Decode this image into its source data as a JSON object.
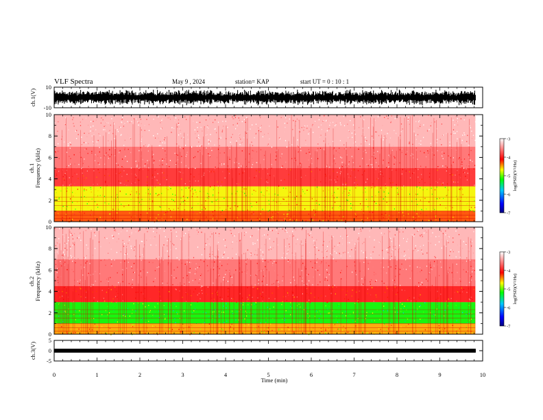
{
  "header": {
    "title": "VLF Spectra",
    "date": "May 9 , 2024",
    "station": "station= KAP",
    "start": "start UT = 0 : 10 : 1"
  },
  "chart_data": [
    {
      "type": "line",
      "panel": "ch1-waveform",
      "ylabel": "ch.1(V)",
      "ylim": [
        -10,
        10
      ],
      "yticks": [
        "10",
        "-10"
      ],
      "x_extent_min": [
        0,
        9.83
      ],
      "signal": "dense waveform oscillating near full scale (about -8 to +8 V)"
    },
    {
      "type": "heatmap",
      "panel": "ch1-spectrogram",
      "ylabel": "ch.1\nFrequency (kHz)",
      "ylim": [
        0,
        10
      ],
      "yticks": [
        "0",
        "2",
        "4",
        "6",
        "8",
        "10"
      ],
      "x_extent_min": [
        0,
        9.83
      ],
      "colorbar": {
        "label": "log(PSD)(V²/Hz)",
        "range": [
          -7,
          -3
        ],
        "ticks": [
          "-3",
          "-4",
          "-5",
          "-6",
          "-7"
        ]
      },
      "bands": [
        {
          "freq_khz": [
            0,
            1
          ],
          "level": -4.3
        },
        {
          "freq_khz": [
            1,
            3.3
          ],
          "level": -4.7
        },
        {
          "freq_khz": [
            3.3,
            5
          ],
          "level": -3.9
        },
        {
          "freq_khz": [
            5,
            7
          ],
          "level": -3.6
        },
        {
          "freq_khz": [
            7,
            10
          ],
          "level": -3.3
        }
      ]
    },
    {
      "type": "heatmap",
      "panel": "ch2-spectrogram",
      "ylabel": "ch.2\nFrequency (kHz)",
      "ylim": [
        0,
        10
      ],
      "yticks": [
        "0",
        "2",
        "4",
        "6",
        "8",
        "10"
      ],
      "x_extent_min": [
        0,
        9.83
      ],
      "colorbar": {
        "label": "log(PSD)(V²/Hz)",
        "range": [
          -7,
          -3
        ],
        "ticks": [
          "-3",
          "-4",
          "-5",
          "-6",
          "-7"
        ]
      },
      "bands": [
        {
          "freq_khz": [
            0,
            1
          ],
          "level": -4.5
        },
        {
          "freq_khz": [
            1,
            3
          ],
          "level": -5.2
        },
        {
          "freq_khz": [
            3,
            4.5
          ],
          "level": -4.0
        },
        {
          "freq_khz": [
            4.5,
            7
          ],
          "level": -3.6
        },
        {
          "freq_khz": [
            7,
            10
          ],
          "level": -3.3
        }
      ]
    },
    {
      "type": "line",
      "panel": "ch3-waveform",
      "ylabel": "ch.3(V)",
      "ylim": [
        -5,
        5
      ],
      "yticks": [
        "5",
        "0",
        "-5"
      ],
      "x_extent_min": [
        0,
        9.83
      ],
      "signal": "narrow band of constant amplitude around 0 V (about -0.9 to +0.9 V)"
    }
  ],
  "x_axis": {
    "label": "Time (min)",
    "range": [
      0,
      10
    ],
    "ticks": [
      "0",
      "1",
      "2",
      "3",
      "4",
      "5",
      "6",
      "7",
      "8",
      "9",
      "10"
    ]
  }
}
